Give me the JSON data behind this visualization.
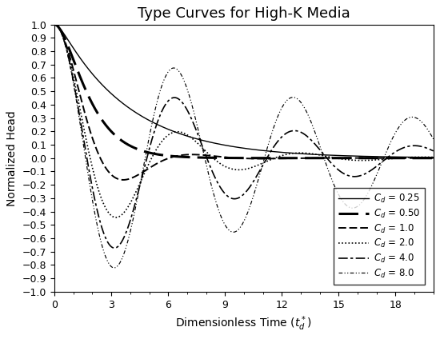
{
  "title": "Type Curves for High-K Media",
  "xlabel": "Dimensionless Time ($t_d^*$)",
  "ylabel": "Normalized Head",
  "xlim": [
    0,
    20
  ],
  "ylim": [
    -1.0,
    1.0
  ],
  "xticks": [
    0,
    3,
    6,
    9,
    12,
    15,
    18
  ],
  "background_color": "#ffffff",
  "line_color": "#000000",
  "curves": [
    {
      "Cd": 0.25,
      "lw": 1.0,
      "ls_key": "solid",
      "label": "C_d = 0.25"
    },
    {
      "Cd": 0.5,
      "lw": 2.2,
      "ls_key": "longdash",
      "label": "C_d = 0.50"
    },
    {
      "Cd": 1.0,
      "lw": 1.4,
      "ls_key": "middash",
      "label": "C_d = 1.0"
    },
    {
      "Cd": 2.0,
      "lw": 1.2,
      "ls_key": "dotted",
      "label": "C_d = 2.0"
    },
    {
      "Cd": 4.0,
      "lw": 1.2,
      "ls_key": "dashdot",
      "label": "C_d = 4.0"
    },
    {
      "Cd": 8.0,
      "lw": 0.85,
      "ls_key": "dashdotdot",
      "label": "C_d = 8.0"
    }
  ]
}
